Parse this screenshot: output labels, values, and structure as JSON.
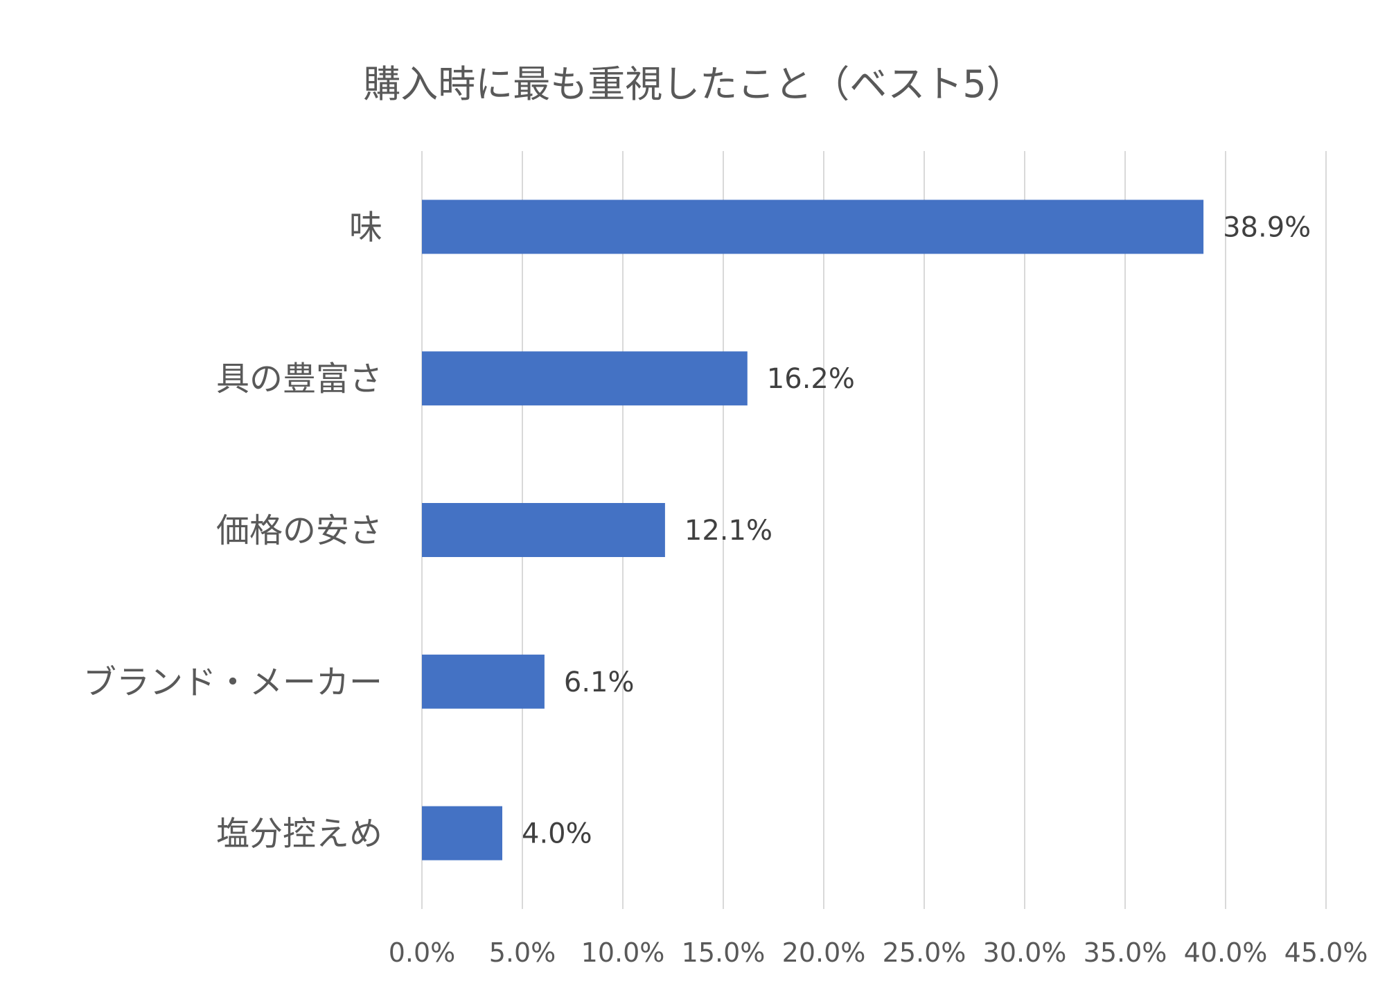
{
  "chart_data": {
    "type": "bar",
    "orientation": "horizontal",
    "title": "購入時に最も重視したこと（ベスト5）",
    "categories": [
      "味",
      "具の豊富さ",
      "価格の安さ",
      "ブランド・メーカー",
      "塩分控えめ"
    ],
    "values": [
      38.9,
      16.2,
      12.1,
      6.1,
      4.0
    ],
    "value_labels": [
      "38.9%",
      "16.2%",
      "12.1%",
      "6.1%",
      "4.0%"
    ],
    "xlim": [
      0,
      45
    ],
    "x_ticks": [
      0,
      5,
      10,
      15,
      20,
      25,
      30,
      35,
      40,
      45
    ],
    "x_tick_labels": [
      "0.0%",
      "5.0%",
      "10.0%",
      "15.0%",
      "20.0%",
      "25.0%",
      "30.0%",
      "35.0%",
      "40.0%",
      "45.0%"
    ],
    "grid": true,
    "legend": "none",
    "bar_color": "#4472C4"
  }
}
